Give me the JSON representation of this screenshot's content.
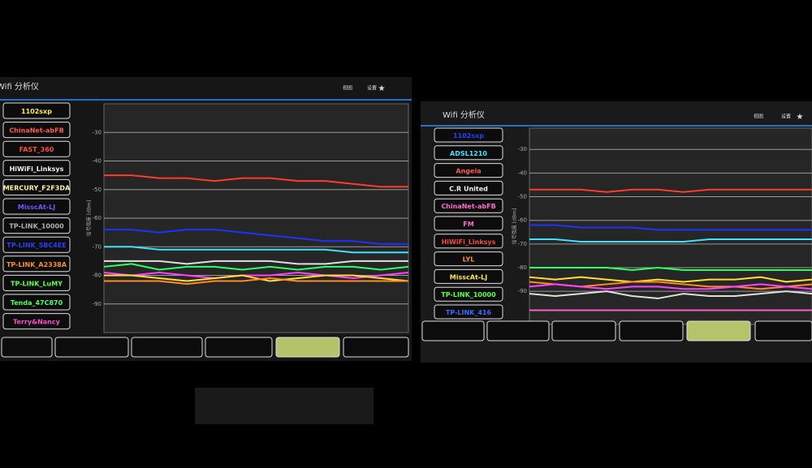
{
  "screens": [
    {
      "title": "Wifi 分析仪",
      "menu": [
        "视图",
        "设置"
      ],
      "networks": [
        {
          "name": "1102sxp",
          "color": "#ffe94a"
        },
        {
          "name": "ChinaNet-abFB",
          "color": "#ff5a4a"
        },
        {
          "name": "FAST_360",
          "color": "#ff4a3a"
        },
        {
          "name": "HiWiFi_Linksys",
          "color": "#f0f0f0"
        },
        {
          "name": "MERCURY_F2F3DA",
          "color": "#fff2a0"
        },
        {
          "name": "MisscAt-LJ",
          "color": "#7a50ff"
        },
        {
          "name": "TP-LINK_10000",
          "color": "#b0b0b0"
        },
        {
          "name": "TP-LINK_5BC4EE",
          "color": "#2a3cff"
        },
        {
          "name": "TP-LINK_A2338A",
          "color": "#ff8c2a"
        },
        {
          "name": "TP-LINK_LuMY",
          "color": "#5aff4a"
        },
        {
          "name": "Tenda_47C870",
          "color": "#4aff6a"
        },
        {
          "name": "Terry&Nancy",
          "color": "#ff4ad0"
        }
      ],
      "chart": {
        "ylabel": "信号强度 [dBm]",
        "ylim": [
          -100,
          -20
        ],
        "yticks": [
          -30,
          -40,
          -50,
          -60,
          -70,
          -80,
          -90
        ],
        "series": [
          {
            "color": "#ff3b30",
            "values": [
              -45,
              -45,
              -46,
              -46,
              -47,
              -46,
              -46,
              -47,
              -47,
              -48,
              -49,
              -49
            ]
          },
          {
            "color": "#2030ff",
            "values": [
              -64,
              -64,
              -65,
              -64,
              -64,
              -65,
              -66,
              -67,
              -68,
              -68,
              -69,
              -69
            ]
          },
          {
            "color": "#40e0ff",
            "values": [
              -70,
              -70,
              -71,
              -71,
              -71,
              -71,
              -71,
              -71,
              -71,
              -72,
              -72,
              -72
            ]
          },
          {
            "color": "#e0e0e0",
            "values": [
              -75,
              -75,
              -75,
              -76,
              -75,
              -75,
              -75,
              -76,
              -76,
              -75,
              -75,
              -75
            ]
          },
          {
            "color": "#30ff60",
            "values": [
              -77,
              -76,
              -78,
              -77,
              -77,
              -78,
              -77,
              -78,
              -77,
              -77,
              -78,
              -77
            ]
          },
          {
            "color": "#ff40ff",
            "values": [
              -79,
              -80,
              -79,
              -80,
              -81,
              -80,
              -80,
              -79,
              -80,
              -81,
              -80,
              -79
            ]
          },
          {
            "color": "#ffe030",
            "values": [
              -80,
              -80,
              -81,
              -82,
              -81,
              -80,
              -82,
              -81,
              -80,
              -80,
              -81,
              -82
            ]
          },
          {
            "color": "#ff8c20",
            "values": [
              -82,
              -82,
              -82,
              -83,
              -82,
              -82,
              -81,
              -82,
              -82,
              -82,
              -82,
              -82
            ]
          }
        ]
      }
    },
    {
      "title": "Wifi 分析仪",
      "menu": [
        "视图",
        "设置"
      ],
      "networks": [
        {
          "name": "1102sxp",
          "color": "#2a3cff"
        },
        {
          "name": "ADSL1210",
          "color": "#4ae0ff"
        },
        {
          "name": "Angela",
          "color": "#ff5a4a"
        },
        {
          "name": "C.R United",
          "color": "#f0f0f0"
        },
        {
          "name": "ChinaNet-abFB",
          "color": "#ff6ad0"
        },
        {
          "name": "FM",
          "color": "#ff6ad0"
        },
        {
          "name": "HiWiFi_Linksys",
          "color": "#ff4a3a"
        },
        {
          "name": "LYL",
          "color": "#ff8c2a"
        },
        {
          "name": "MisscAt-LJ",
          "color": "#ffe94a"
        },
        {
          "name": "TP-LINK_10000",
          "color": "#5aff4a"
        },
        {
          "name": "TP-LINK_416",
          "color": "#3a6aff"
        }
      ],
      "chart": {
        "ylabel": "信号强度 [dBm]",
        "ylim": [
          -104,
          -21
        ],
        "yticks": [
          -30,
          -40,
          -50,
          -60,
          -70,
          -80,
          -90
        ],
        "series": [
          {
            "color": "#ff3b30",
            "values": [
              -47,
              -47,
              -47,
              -48,
              -47,
              -47,
              -48,
              -47,
              -47,
              -47,
              -47,
              -47
            ]
          },
          {
            "color": "#2030ff",
            "values": [
              -62,
              -62,
              -63,
              -63,
              -63,
              -64,
              -64,
              -64,
              -64,
              -64,
              -64,
              -64
            ]
          },
          {
            "color": "#40e0ff",
            "values": [
              -68,
              -68,
              -69,
              -69,
              -69,
              -69,
              -69,
              -68,
              -68,
              -68,
              -68,
              -68
            ]
          },
          {
            "color": "#30ff60",
            "values": [
              -80,
              -80,
              -80,
              -80,
              -81,
              -80,
              -81,
              -81,
              -81,
              -81,
              -81,
              -81
            ]
          },
          {
            "color": "#ffe030",
            "values": [
              -84,
              -85,
              -84,
              -85,
              -86,
              -85,
              -86,
              -85,
              -85,
              -84,
              -86,
              -85
            ]
          },
          {
            "color": "#ff8c20",
            "values": [
              -86,
              -87,
              -88,
              -87,
              -86,
              -86,
              -87,
              -88,
              -88,
              -89,
              -88,
              -87
            ]
          },
          {
            "color": "#ff40ff",
            "values": [
              -88,
              -87,
              -88,
              -89,
              -88,
              -88,
              -89,
              -89,
              -88,
              -87,
              -88,
              -89
            ]
          },
          {
            "color": "#e0e0e0",
            "values": [
              -91,
              -92,
              -91,
              -90,
              -92,
              -93,
              -91,
              -92,
              -92,
              -91,
              -90,
              -91
            ]
          },
          {
            "color": "#ff60c0",
            "values": [
              -98,
              -98,
              -98,
              -98,
              -98,
              -98,
              -98,
              -98,
              -98,
              -98,
              -98,
              -98
            ]
          }
        ]
      }
    }
  ]
}
